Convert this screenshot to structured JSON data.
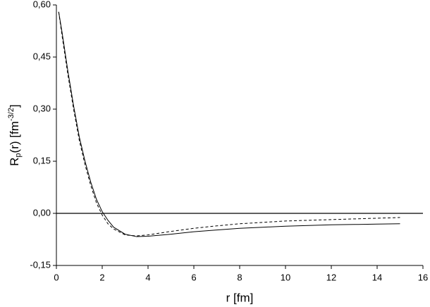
{
  "chart_data": {
    "type": "line",
    "xlabel": "r [fm]",
    "ylabel": {
      "base": "R",
      "sub": "p",
      "mid": "(r) [fm",
      "sup": "-3/2",
      "end": "]"
    },
    "x": [
      0.1,
      0.25,
      0.5,
      0.75,
      1,
      1.25,
      1.5,
      1.75,
      2,
      2.25,
      2.5,
      3,
      3.5,
      4,
      5,
      6,
      7,
      8,
      9,
      10,
      11,
      12,
      13,
      14,
      15
    ],
    "series": [
      {
        "color": "#000000",
        "dash": "none",
        "values": [
          0.58,
          0.52,
          0.41,
          0.31,
          0.22,
          0.15,
          0.09,
          0.04,
          0.005,
          -0.02,
          -0.04,
          -0.06,
          -0.067,
          -0.066,
          -0.06,
          -0.053,
          -0.048,
          -0.043,
          -0.04,
          -0.037,
          -0.035,
          -0.033,
          -0.032,
          -0.031,
          -0.03
        ]
      },
      {
        "color": "#000000",
        "dash": "4,3",
        "values": [
          0.58,
          0.51,
          0.4,
          0.3,
          0.21,
          0.14,
          0.08,
          0.03,
          -0.005,
          -0.03,
          -0.045,
          -0.062,
          -0.065,
          -0.062,
          -0.052,
          -0.043,
          -0.036,
          -0.03,
          -0.026,
          -0.022,
          -0.02,
          -0.018,
          -0.016,
          -0.014,
          -0.012
        ]
      }
    ],
    "hline": 0,
    "xlim": [
      0,
      16
    ],
    "xticks": [
      0,
      2,
      4,
      6,
      8,
      10,
      12,
      14,
      16
    ],
    "ylim": [
      -0.15,
      0.6
    ],
    "yticks": [
      {
        "value": -0.15,
        "label": "-0,15"
      },
      {
        "value": 0,
        "label": "0,00"
      },
      {
        "value": 0.15,
        "label": "0,15"
      },
      {
        "value": 0.3,
        "label": "0,30"
      },
      {
        "value": 0.45,
        "label": "0,45"
      },
      {
        "value": 0.6,
        "label": "0,60"
      }
    ]
  }
}
